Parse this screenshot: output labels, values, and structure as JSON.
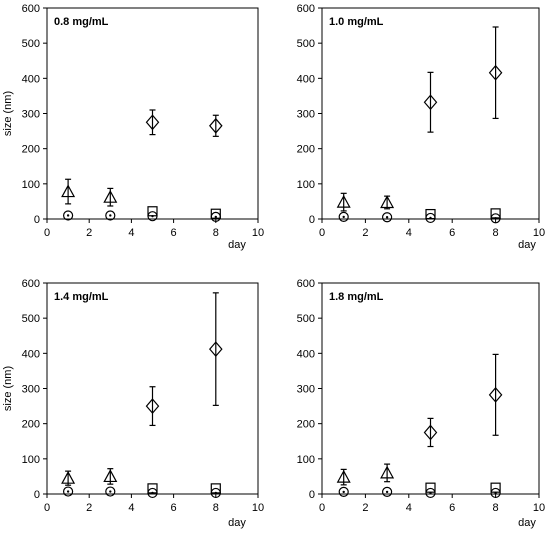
{
  "chart_data": [
    {
      "type": "scatter",
      "title": "0.8 mg/mL",
      "xlabel": "day",
      "ylabel": "size (nm)",
      "xlim": [
        0,
        10
      ],
      "ylim": [
        0,
        600
      ],
      "xticks": [
        0,
        2,
        4,
        6,
        8,
        10
      ],
      "yticks": [
        0,
        100,
        200,
        300,
        400,
        500,
        600
      ],
      "grid": false,
      "series": [
        {
          "marker": "triangle",
          "points": [
            {
              "x": 1,
              "y": 78,
              "err": 35
            },
            {
              "x": 3,
              "y": 62,
              "err": 25
            }
          ]
        },
        {
          "marker": "diamond",
          "points": [
            {
              "x": 5,
              "y": 275,
              "err": 35
            },
            {
              "x": 8,
              "y": 265,
              "err": 30
            }
          ]
        },
        {
          "marker": "square",
          "points": [
            {
              "x": 5,
              "y": 22,
              "err": 5
            },
            {
              "x": 8,
              "y": 15,
              "err": 5
            }
          ]
        },
        {
          "marker": "circle",
          "points": [
            {
              "x": 1,
              "y": 10,
              "err": 3
            },
            {
              "x": 3,
              "y": 10,
              "err": 3
            },
            {
              "x": 5,
              "y": 8,
              "err": 3
            },
            {
              "x": 8,
              "y": 6,
              "err": 3
            }
          ]
        }
      ]
    },
    {
      "type": "scatter",
      "title": "1.0 mg/mL",
      "xlabel": "day",
      "ylabel": "",
      "xlim": [
        0,
        10
      ],
      "ylim": [
        0,
        600
      ],
      "xticks": [
        0,
        2,
        4,
        6,
        8,
        10
      ],
      "yticks": [
        0,
        100,
        200,
        300,
        400,
        500,
        600
      ],
      "grid": false,
      "series": [
        {
          "marker": "triangle",
          "points": [
            {
              "x": 1,
              "y": 48,
              "err": 25
            },
            {
              "x": 3,
              "y": 47,
              "err": 18
            }
          ]
        },
        {
          "marker": "diamond",
          "points": [
            {
              "x": 5,
              "y": 332,
              "err": 85
            },
            {
              "x": 8,
              "y": 416,
              "err": 130
            }
          ]
        },
        {
          "marker": "square",
          "points": [
            {
              "x": 5,
              "y": 14,
              "err": 5
            },
            {
              "x": 8,
              "y": 16,
              "err": 5
            }
          ]
        },
        {
          "marker": "circle",
          "points": [
            {
              "x": 1,
              "y": 6,
              "err": 3
            },
            {
              "x": 3,
              "y": 5,
              "err": 3
            },
            {
              "x": 5,
              "y": 3,
              "err": 3
            },
            {
              "x": 8,
              "y": 2,
              "err": 3
            }
          ]
        }
      ]
    },
    {
      "type": "scatter",
      "title": "1.4 mg/mL",
      "xlabel": "day",
      "ylabel": "size (nm)",
      "xlim": [
        0,
        10
      ],
      "ylim": [
        0,
        600
      ],
      "xticks": [
        0,
        2,
        4,
        6,
        8,
        10
      ],
      "yticks": [
        0,
        100,
        200,
        300,
        400,
        500,
        600
      ],
      "grid": false,
      "series": [
        {
          "marker": "triangle",
          "points": [
            {
              "x": 1,
              "y": 45,
              "err": 20
            },
            {
              "x": 3,
              "y": 50,
              "err": 22
            }
          ]
        },
        {
          "marker": "diamond",
          "points": [
            {
              "x": 5,
              "y": 250,
              "err": 55
            },
            {
              "x": 8,
              "y": 412,
              "err": 160
            }
          ]
        },
        {
          "marker": "square",
          "points": [
            {
              "x": 5,
              "y": 16,
              "err": 5
            },
            {
              "x": 8,
              "y": 16,
              "err": 5
            }
          ]
        },
        {
          "marker": "circle",
          "points": [
            {
              "x": 1,
              "y": 7,
              "err": 3
            },
            {
              "x": 3,
              "y": 7,
              "err": 3
            },
            {
              "x": 5,
              "y": 3,
              "err": 3
            },
            {
              "x": 8,
              "y": 3,
              "err": 3
            }
          ]
        }
      ]
    },
    {
      "type": "scatter",
      "title": "1.8 mg/mL",
      "xlabel": "day",
      "ylabel": "",
      "xlim": [
        0,
        10
      ],
      "ylim": [
        0,
        600
      ],
      "xticks": [
        0,
        2,
        4,
        6,
        8,
        10
      ],
      "yticks": [
        0,
        100,
        200,
        300,
        400,
        500,
        600
      ],
      "grid": false,
      "series": [
        {
          "marker": "triangle",
          "points": [
            {
              "x": 1,
              "y": 48,
              "err": 22
            },
            {
              "x": 3,
              "y": 60,
              "err": 25
            }
          ]
        },
        {
          "marker": "diamond",
          "points": [
            {
              "x": 5,
              "y": 175,
              "err": 40
            },
            {
              "x": 8,
              "y": 282,
              "err": 115
            }
          ]
        },
        {
          "marker": "square",
          "points": [
            {
              "x": 5,
              "y": 18,
              "err": 5
            },
            {
              "x": 8,
              "y": 18,
              "err": 5
            }
          ]
        },
        {
          "marker": "circle",
          "points": [
            {
              "x": 1,
              "y": 6,
              "err": 3
            },
            {
              "x": 3,
              "y": 6,
              "err": 3
            },
            {
              "x": 5,
              "y": 3,
              "err": 3
            },
            {
              "x": 8,
              "y": 3,
              "err": 3
            }
          ]
        }
      ]
    }
  ]
}
